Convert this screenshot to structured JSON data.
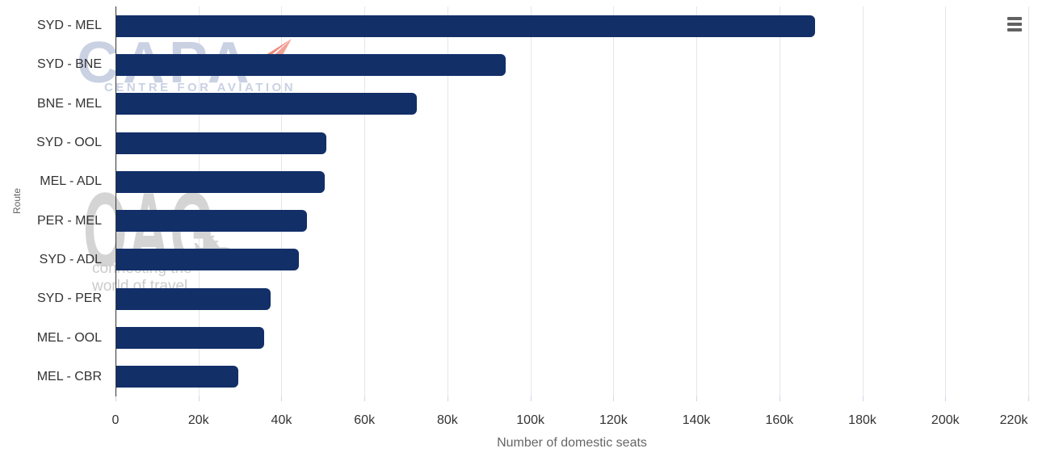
{
  "chart_data": {
    "type": "bar",
    "orientation": "horizontal",
    "title": "",
    "xlabel": "Number of domestic seats",
    "ylabel": "Route",
    "categories": [
      "SYD - MEL",
      "SYD - BNE",
      "BNE - MEL",
      "SYD - OOL",
      "MEL - ADL",
      "PER - MEL",
      "SYD - ADL",
      "SYD - PER",
      "MEL - OOL",
      "MEL - CBR"
    ],
    "values": [
      168400,
      93900,
      72400,
      50600,
      50200,
      46000,
      44000,
      37200,
      35600,
      29400
    ],
    "xlim": [
      0,
      220000
    ],
    "x_tick_interval": 20000,
    "x_tick_labels": [
      "0",
      "20k",
      "40k",
      "60k",
      "80k",
      "100k",
      "120k",
      "140k",
      "160k",
      "180k",
      "200k",
      "220k"
    ],
    "bar_color": "#122f68",
    "grid": true,
    "gridline_color": "#e6e6e6",
    "axis_line_color": "#333333",
    "label_color": "#333333",
    "axis_title_color": "#666666",
    "legend": false
  },
  "controls": {
    "menu_icon": "hamburger-menu-icon"
  },
  "watermarks": {
    "capa": {
      "text": "CAPA",
      "subtext": "CENTRE FOR AVIATION",
      "color": "#c9d1e3",
      "arrow_icon": "paper-plane-arrow-icon",
      "arrow_color": "#ee8b7e"
    },
    "oag": {
      "text": "OAG",
      "plane_icon": "airplane-icon",
      "plane_glyph": "✈",
      "subtext1": "connecting the",
      "subtext2": "world of travel",
      "color": "#d4d4d4"
    }
  }
}
